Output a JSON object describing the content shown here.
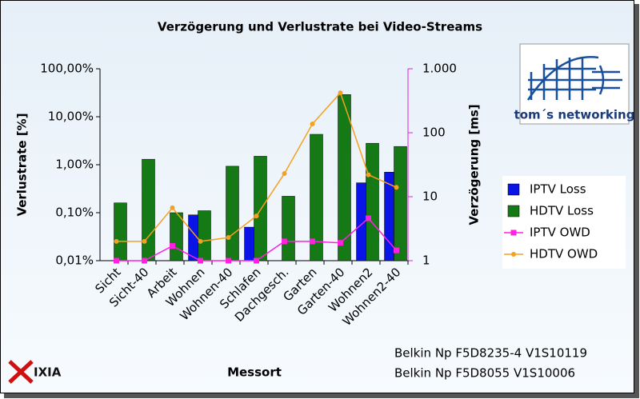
{
  "chart_data": {
    "type": "bar",
    "title": "Verzögerung und Verlustrate bei Video-Streams",
    "x_label": "Messort",
    "y_label": "Verlustrate [%]",
    "y2_label": "Verzögerung [ms]",
    "categories": [
      "Sicht",
      "Sicht-40",
      "Arbeit",
      "Wohnen",
      "Wohnen-40",
      "Schlafen",
      "Dachgesch.",
      "Garten",
      "Garten-40",
      "Wohnen2",
      "Wohnen2-40"
    ],
    "series": [
      {
        "name": "IPTV Loss",
        "type": "bar",
        "color": "#0a14e6",
        "values": [
          null,
          null,
          null,
          0.09,
          null,
          0.05,
          null,
          null,
          null,
          0.42,
          0.7
        ]
      },
      {
        "name": "HDTV Loss",
        "type": "bar",
        "color": "#157a15",
        "values": [
          0.16,
          1.3,
          0.1,
          0.11,
          0.93,
          1.5,
          0.22,
          4.3,
          29,
          2.8,
          2.4
        ]
      },
      {
        "name": "IPTV OWD",
        "type": "line",
        "marker": "square",
        "axis": "y2",
        "color": "#ff20e0",
        "values": [
          1,
          1,
          1.7,
          1,
          1,
          1,
          2,
          2,
          1.9,
          4.6,
          1.45
        ]
      },
      {
        "name": "HDTV OWD",
        "type": "line",
        "marker": "circle",
        "axis": "y2",
        "color": "#f5a020",
        "values": [
          2,
          2,
          6.7,
          2,
          2.3,
          5,
          23,
          137,
          420,
          22,
          14
        ]
      }
    ],
    "ylog": true,
    "ylim": [
      0.01,
      100
    ],
    "yticks": [
      {
        "value": 0.01,
        "label": "0,01%"
      },
      {
        "value": 0.1,
        "label": "0,10%"
      },
      {
        "value": 1,
        "label": "1,00%"
      },
      {
        "value": 10,
        "label": "10,00%"
      },
      {
        "value": 100,
        "label": "100,00%"
      }
    ],
    "y2log": true,
    "y2lim": [
      1,
      1000
    ],
    "y2ticks": [
      1,
      10,
      100,
      {
        "value": 1000,
        "label": "1.000"
      }
    ],
    "y2_color": "#e020e0",
    "legend": "right",
    "logos": [
      "tom´s networking",
      "IXIA"
    ],
    "notes": [
      "Belkin Np F5D8235-4 V1S10119",
      "Belkin Np F5D8055 V1S10006"
    ]
  }
}
